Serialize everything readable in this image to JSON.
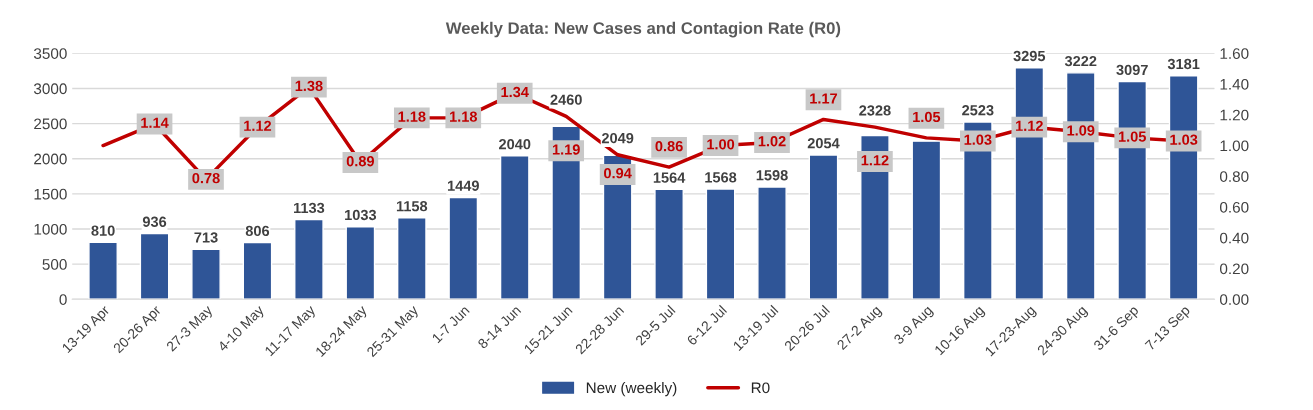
{
  "chart_data": {
    "type": "bar",
    "title": "Weekly Data: New Cases and Contagion Rate (R0)",
    "categories": [
      "13-19 Apr",
      "20-26 Apr",
      "27-3 May",
      "4-10 May",
      "11-17 May",
      "18-24 May",
      "25-31 May",
      "1-7 Jun",
      "8-14 Jun",
      "15-21 Jun",
      "22-28 Jun",
      "29-5 Jul",
      "6-12 Jul",
      "13-19 Jul",
      "20-26 Jul",
      "27-2 Aug",
      "3-9 Aug",
      "10-16 Aug",
      "17-23-Aug",
      "24-30 Aug",
      "31-6 Sep",
      "7-13 Sep"
    ],
    "series": [
      {
        "name": "New (weekly)",
        "color": "#2f5597",
        "values": [
          810,
          936,
          713,
          806,
          1133,
          1033,
          1158,
          1449,
          2040,
          2460,
          2049,
          1564,
          1568,
          1598,
          2054,
          2328,
          2250,
          2523,
          3295,
          3222,
          3097,
          3181
        ],
        "value_labels": [
          "810",
          "936",
          "713",
          "806",
          "1133",
          "1033",
          "1158",
          "1449",
          "2040",
          "2460",
          "2049",
          "1564",
          "1568",
          "1598",
          "2054",
          "2328",
          null,
          "2523",
          "3295",
          "3222",
          "3097",
          "3181"
        ]
      },
      {
        "name": "R0",
        "type": "line",
        "axis": "y2",
        "color": "#c00000",
        "values": [
          1.0,
          1.14,
          0.78,
          1.12,
          1.38,
          0.89,
          1.18,
          1.18,
          1.34,
          1.19,
          0.94,
          0.86,
          1.0,
          1.02,
          1.17,
          1.12,
          1.05,
          1.03,
          1.12,
          1.09,
          1.05,
          1.03
        ],
        "value_labels": [
          null,
          "1.14",
          "0.78",
          "1.12",
          "1.38",
          "0.89",
          "1.18",
          "1.18",
          "1.34",
          "1.19",
          "0.94",
          "0.86",
          "1.00",
          "1.02",
          "1.17",
          "1.12",
          "1.05",
          "1.03",
          "1.12",
          "1.09",
          "1.05",
          "1.03"
        ]
      }
    ],
    "ylim": [
      0,
      3500
    ],
    "yticks": [
      0,
      500,
      1000,
      1500,
      2000,
      2500,
      3000,
      3500
    ],
    "y2lim": [
      0,
      1.6
    ],
    "y2ticks": [
      {
        "value": 0,
        "label": "0.00"
      },
      {
        "value": 0.2,
        "label": "0.20"
      },
      {
        "value": 0.4,
        "label": "0.40"
      },
      {
        "value": 0.6,
        "label": "0.60"
      },
      {
        "value": 0.8,
        "label": "0.80"
      },
      {
        "value": 1.0,
        "label": "1.00"
      },
      {
        "value": 1.2,
        "label": "1.20"
      },
      {
        "value": 1.4,
        "label": "1.40"
      },
      {
        "value": 1.6,
        "label": "1.60"
      }
    ],
    "grid": "y",
    "legend": "bottom",
    "line_style": "solid"
  }
}
